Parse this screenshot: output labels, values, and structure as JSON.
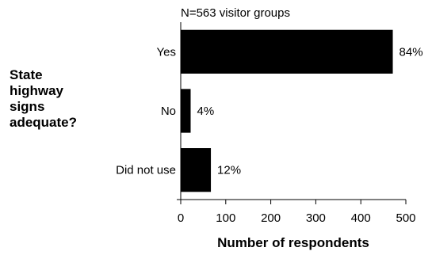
{
  "chart_data": {
    "type": "bar",
    "orientation": "horizontal",
    "note": "N=563 visitor groups",
    "question_lines": [
      "State",
      "highway",
      "signs",
      "adequate?"
    ],
    "categories": [
      "Yes",
      "No",
      "Did not use"
    ],
    "values": [
      471,
      22,
      67
    ],
    "data_labels": [
      "84%",
      "4%",
      "12%"
    ],
    "xlabel": "Number of respondents",
    "xlim": [
      0,
      500
    ],
    "xticks": [
      "0",
      "100",
      "200",
      "300",
      "400",
      "500"
    ],
    "bar_color": "#000000",
    "grid": false,
    "legend": "none"
  }
}
